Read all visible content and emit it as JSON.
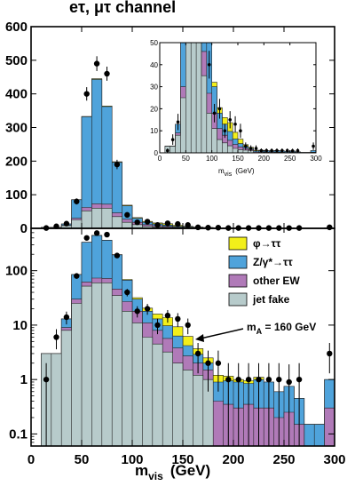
{
  "chart_data": {
    "type": "histogram",
    "title": "eτ, μτ channel",
    "xlabel": "m",
    "xlabel_sub": "vis",
    "xlabel_unit": "(GeV)",
    "bin_edges": [
      10,
      20,
      30,
      40,
      50,
      60,
      70,
      80,
      90,
      100,
      110,
      120,
      130,
      140,
      150,
      160,
      170,
      180,
      190,
      200,
      210,
      220,
      230,
      240,
      250,
      260,
      270,
      280,
      290,
      300
    ],
    "x_ticks": [
      0,
      50,
      100,
      150,
      200,
      250,
      300
    ],
    "upper_y_ticks": [
      0,
      100,
      200,
      300,
      400,
      500,
      600
    ],
    "lower_y_ticks": [
      "0.1",
      "1",
      "10",
      "100"
    ],
    "inset_x_ticks": [
      0,
      50,
      100,
      150,
      200,
      250,
      300
    ],
    "inset_y_ticks": [
      0,
      10,
      20,
      30,
      40,
      50
    ],
    "upper_ylim": [
      0,
      600
    ],
    "lower_ylim": [
      0.06,
      600
    ],
    "inset_ylim": [
      0,
      50
    ],
    "inset_xlabel": "m",
    "inset_xlabel_sub": "vis",
    "inset_xlabel_unit": "(GeV)",
    "scale_lower": "log",
    "series": [
      {
        "name": "φ→ττ",
        "color": "#f2ef1a",
        "values": [
          0,
          0,
          0,
          0.3,
          1,
          2,
          2,
          2,
          2,
          2,
          2.5,
          3,
          4,
          3,
          2,
          0.8,
          0.5,
          0.3,
          0.2,
          0.1,
          0.1,
          0.1,
          0,
          0,
          0,
          0,
          0,
          0,
          0
        ]
      },
      {
        "name": "Z/γ*→ττ",
        "color": "#4fa3db",
        "values": [
          0,
          0,
          4,
          55,
          270,
          370,
          290,
          150,
          40,
          12,
          7,
          5,
          4,
          2.5,
          1.5,
          0.9,
          0.5,
          0.5,
          0.6,
          0.6,
          0.5,
          0.7,
          0.6,
          0.4,
          0.5,
          0.3,
          0.1,
          0.1,
          0.7
        ]
      },
      {
        "name": "other EW",
        "color": "#b07ab8",
        "values": [
          0,
          0,
          1,
          5,
          10,
          13,
          12,
          11,
          9,
          7,
          5,
          3.5,
          2.5,
          1.8,
          1.2,
          0.8,
          0.5,
          0.4,
          0.35,
          0.3,
          0.35,
          0.3,
          0.3,
          0.2,
          0.25,
          0.15,
          0.05,
          0.05,
          0.3
        ]
      },
      {
        "name": "jet fake",
        "color": "#b7cbcb",
        "values": [
          3,
          3,
          8,
          25,
          52,
          60,
          60,
          35,
          18,
          11,
          6,
          4.5,
          3.2,
          2,
          1.5,
          1.2,
          1,
          0,
          0,
          0,
          0,
          0,
          0,
          0,
          0,
          0,
          0,
          0,
          0
        ]
      }
    ],
    "data_points": {
      "x": [
        15,
        25,
        35,
        45,
        55,
        65,
        75,
        85,
        95,
        105,
        115,
        125,
        135,
        145,
        155,
        165,
        175,
        185,
        195,
        205,
        215,
        225,
        235,
        245,
        255,
        265,
        275,
        285,
        295
      ],
      "y": [
        1,
        6,
        14,
        80,
        400,
        490,
        460,
        190,
        40,
        18,
        20,
        10,
        15,
        13,
        10,
        3,
        2,
        2,
        1,
        1,
        1,
        1,
        1,
        1,
        0.9,
        1,
        0,
        0,
        3
      ],
      "err": [
        1,
        2.4,
        3.7,
        9,
        20,
        22,
        21,
        14,
        6.3,
        4.2,
        4.5,
        3.2,
        3.9,
        3.6,
        3.2,
        1.7,
        1.4,
        1.4,
        1,
        1,
        1,
        1,
        1,
        1,
        1,
        1,
        0,
        0,
        1.7
      ]
    },
    "annotation": "m",
    "annotation_sub": "A",
    "annotation_value": " = 160 GeV",
    "legend_placement": "upper-right of lower panel"
  }
}
